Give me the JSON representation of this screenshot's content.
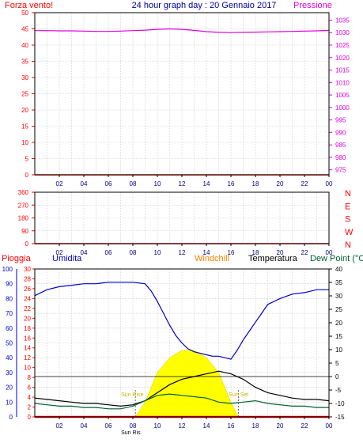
{
  "header": {
    "left_label": "Forza vento!",
    "title": "24 hour graph day : 20 Gennaio 2017",
    "right_label": "Pressione"
  },
  "colors": {
    "wind_axis": "#ff0000",
    "pressure": "#e000e0",
    "title": "#0000a0",
    "humidity": "#0000cc",
    "temperature": "#000000",
    "dewpoint": "#006030",
    "windchill": "#ff8000",
    "rain": "#ff0000",
    "sun": "#ffff00",
    "frame": "#000000"
  },
  "chart_data": [
    {
      "type": "line",
      "name": "wind-pressure",
      "x_ticks": [
        "02",
        "04",
        "06",
        "08",
        "10",
        "12",
        "14",
        "16",
        "18",
        "20",
        "22",
        "00"
      ],
      "left_axis": {
        "label": "Forza vento!",
        "ticks": [
          0,
          5,
          10,
          15,
          20,
          25,
          30,
          35,
          40,
          45,
          50
        ],
        "ylim": [
          0,
          50
        ]
      },
      "right_axis": {
        "label": "Pressione",
        "ticks": [
          975,
          980,
          985,
          990,
          995,
          1000,
          1005,
          1010,
          1015,
          1020,
          1025,
          1030,
          1035
        ],
        "ylim": [
          973,
          1038
        ]
      },
      "series": [
        {
          "name": "Pressione",
          "axis": "right",
          "x": [
            0,
            1,
            2,
            3,
            4,
            5,
            6,
            7,
            8,
            9,
            10,
            11,
            12,
            13,
            14,
            15,
            16,
            17,
            18,
            19,
            20,
            21,
            22,
            23,
            24
          ],
          "values": [
            1030.8,
            1030.8,
            1030.7,
            1030.7,
            1030.6,
            1030.5,
            1030.5,
            1030.6,
            1030.8,
            1031.0,
            1031.3,
            1031.5,
            1031.3,
            1030.9,
            1030.4,
            1030.1,
            1030.0,
            1030.1,
            1030.2,
            1030.3,
            1030.4,
            1030.5,
            1030.6,
            1030.7,
            1030.9
          ]
        },
        {
          "name": "Forza vento!",
          "axis": "left",
          "x": [
            0,
            24
          ],
          "values": [
            0,
            0
          ]
        }
      ]
    },
    {
      "type": "line",
      "name": "wind-direction",
      "x_ticks": [
        "02",
        "04",
        "06",
        "08",
        "10",
        "12",
        "14",
        "16",
        "18",
        "20",
        "22",
        "00"
      ],
      "left_axis": {
        "ticks": [
          0,
          90,
          180,
          270,
          360
        ],
        "ylim": [
          0,
          360
        ]
      },
      "right_axis": {
        "ticks": [
          "N",
          "W",
          "S",
          "E",
          "N"
        ]
      },
      "series": [
        {
          "name": "direction",
          "x": [
            0,
            24
          ],
          "values": [
            0,
            0
          ]
        }
      ]
    },
    {
      "type": "line",
      "name": "temperature-humidity",
      "legend": [
        "Pioggia",
        "Umidita",
        "Windchill",
        "Temperatura",
        "Dew Point (°C"
      ],
      "x_ticks": [
        "02",
        "04",
        "06",
        "08",
        "10",
        "12",
        "14",
        "16",
        "18",
        "20",
        "22",
        "00"
      ],
      "humidity_axis": {
        "ticks": [
          0,
          10,
          20,
          30,
          40,
          50,
          60,
          70,
          80,
          90,
          100
        ],
        "ylim": [
          0,
          100
        ]
      },
      "rain_axis": {
        "ticks": [
          0,
          2,
          4,
          6,
          8,
          10,
          12,
          14,
          16,
          18,
          20,
          22,
          24,
          26,
          28,
          30
        ],
        "ylim": [
          0,
          30
        ]
      },
      "temp_axis": {
        "ticks": [
          -15,
          -10,
          -5,
          0,
          5,
          10,
          15,
          20,
          25,
          30,
          35,
          40
        ],
        "ylim": [
          -15,
          40
        ]
      },
      "sun_labels": [
        "Sun Rise",
        "Sun Set",
        "Sun Ris"
      ],
      "series": [
        {
          "name": "Umidita",
          "axis": "humidity",
          "x": [
            0,
            0.5,
            1,
            2,
            3,
            4,
            5,
            6,
            7,
            8,
            9,
            9.5,
            10,
            10.5,
            11,
            11.5,
            12,
            12.5,
            13,
            13.5,
            14,
            14.5,
            15,
            15.5,
            16,
            16.5,
            17,
            17.5,
            18,
            18.5,
            19,
            20,
            21,
            22,
            23,
            24
          ],
          "values": [
            82,
            84,
            86,
            88,
            89,
            90,
            90,
            91,
            91,
            91,
            90,
            85,
            78,
            70,
            62,
            55,
            50,
            46,
            44,
            43,
            42,
            41,
            41,
            40,
            39,
            45,
            52,
            58,
            64,
            70,
            76,
            80,
            83,
            84,
            86,
            86
          ]
        },
        {
          "name": "Temperatura",
          "axis": "temp",
          "x": [
            0,
            1,
            2,
            3,
            4,
            5,
            6,
            7,
            8,
            9,
            10,
            11,
            12,
            13,
            14,
            15,
            16,
            17,
            18,
            19,
            20,
            21,
            22,
            23,
            24
          ],
          "values": [
            -8,
            -8.5,
            -9,
            -9.5,
            -10,
            -10,
            -10.5,
            -11,
            -10.5,
            -9,
            -6,
            -3,
            -1,
            0,
            1,
            2,
            1,
            -1,
            -4,
            -6,
            -7,
            -8,
            -8.5,
            -8.5,
            -9
          ]
        },
        {
          "name": "Dew Point (°C",
          "axis": "temp",
          "x": [
            0,
            1,
            2,
            3,
            4,
            5,
            6,
            7,
            8,
            9,
            10,
            11,
            12,
            13,
            14,
            15,
            16,
            17,
            18,
            19,
            20,
            21,
            22,
            23,
            24
          ],
          "values": [
            -10,
            -10.5,
            -11,
            -11,
            -11.5,
            -11.5,
            -12,
            -12,
            -11,
            -9,
            -7,
            -6.5,
            -7,
            -7.5,
            -8,
            -9.5,
            -10,
            -9.5,
            -9,
            -10,
            -10.5,
            -11,
            -11,
            -11.5,
            -11.5
          ]
        },
        {
          "name": "Threshold",
          "axis": "temp",
          "x": [
            0,
            24
          ],
          "values": [
            0,
            0
          ]
        },
        {
          "name": "Pioggia",
          "axis": "rain",
          "x": [
            0,
            24
          ],
          "values": [
            0,
            0
          ]
        }
      ],
      "sun": {
        "x": [
          8.2,
          9,
          10,
          11,
          12,
          13,
          14,
          15,
          16,
          16.6
        ],
        "values": [
          0,
          10,
          30,
          40,
          45,
          45,
          40,
          30,
          10,
          0
        ],
        "axis": "humidity"
      }
    }
  ]
}
